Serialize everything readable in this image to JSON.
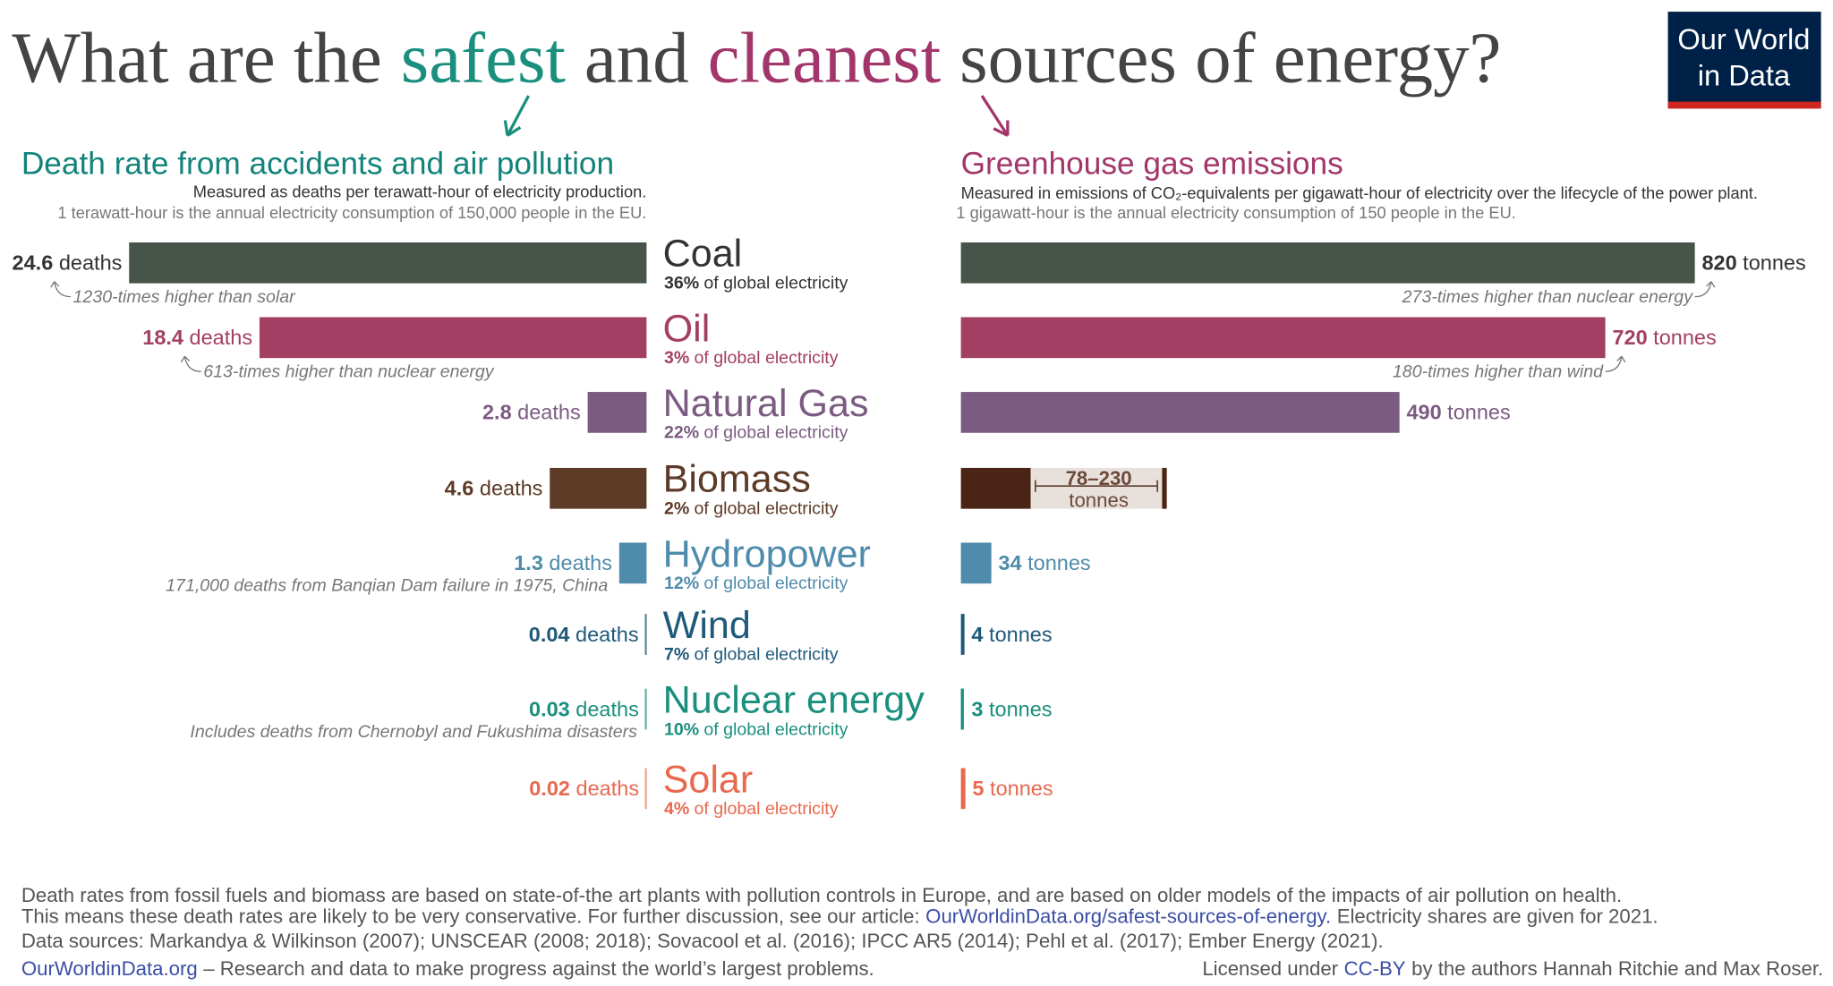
{
  "header": {
    "title_parts": [
      "What are the",
      "safest",
      "and",
      "cleanest",
      "sources of energy?"
    ],
    "logo": [
      "Our World",
      "in Data"
    ]
  },
  "chart_data": [
    {
      "type": "bar",
      "direction": "left",
      "title": "Death rate from accidents and air pollution",
      "subtitle": "Measured as deaths per terawatt-hour of electricity production.",
      "note": "1 terawatt-hour is the annual electricity consumption of 150,000 people in the EU.",
      "categories": [
        "Coal",
        "Oil",
        "Natural Gas",
        "Biomass",
        "Hydropower",
        "Wind",
        "Nuclear energy",
        "Solar"
      ],
      "colors": [
        "#47544a",
        "#a33f63",
        "#7c5b82",
        "#5d3a26",
        "#4f8bab",
        "#1f5a7a",
        "#1a8f7e",
        "#e8694f"
      ],
      "shares": [
        36,
        3,
        22,
        2,
        12,
        7,
        10,
        4
      ],
      "share_labels": [
        "36%",
        "3%",
        "22%",
        "2%",
        "12%",
        "7%",
        "10%",
        "4%"
      ],
      "share_suffix": "of global electricity",
      "values": [
        24.6,
        18.4,
        2.8,
        4.6,
        1.3,
        0.04,
        0.03,
        0.02
      ],
      "unit": "deaths",
      "notes": [
        "1230-times higher than solar",
        "613-times higher than nuclear energy",
        null,
        null,
        "171,000 deaths from Banqian Dam failure in 1975, China",
        null,
        "Includes deaths from Chernobyl and Fukushima disasters",
        null
      ],
      "xlim": [
        0,
        25
      ]
    },
    {
      "type": "bar",
      "direction": "right",
      "title": "Greenhouse gas emissions",
      "subtitle": "Measured in emissions of CO₂-equivalents per gigawatt-hour of electricity over the lifecycle of the power plant.",
      "note": "1 gigawatt-hour is the annual electricity consumption of 150 people in the EU.",
      "values": [
        820,
        720,
        490,
        78,
        34,
        4,
        3,
        5
      ],
      "upper": [
        null,
        null,
        null,
        230,
        null,
        null,
        null,
        null
      ],
      "value_labels": [
        null,
        null,
        null,
        "78–230",
        null,
        null,
        null,
        null
      ],
      "unit": "tonnes",
      "colors": [
        "#47544a",
        "#a33f63",
        "#7c5b82",
        "#4a2414",
        "#4f8bab",
        "#1f5a7a",
        "#1a8f7e",
        "#e8694f"
      ],
      "range_color": "#e8e0db",
      "notes": [
        "273-times higher than nuclear energy",
        "180-times higher than wind",
        null,
        null,
        null,
        null,
        null,
        null
      ],
      "xlim": [
        0,
        850
      ]
    }
  ],
  "footer": {
    "lines": [
      "Death rates from fossil fuels and biomass are based on state-of-the art plants with pollution controls in Europe, and are based on older models of the impacts of air pollution on health."
    ],
    "line2": [
      "This means these death rates are likely to be very conservative. For further discussion, see our article:",
      "OurWorldinData.org/safest-sources-of-energy.",
      "Electricity shares are given for 2021."
    ],
    "sources": "Data sources: Markandya & Wilkinson (2007); UNSCEAR (2008; 2018); Sovacool et al. (2016); IPCC AR5 (2014); Pehl et al. (2017); Ember Energy (2021).",
    "site": "OurWorldinData.org",
    "tagline": "– Research and data to make progress against the world’s largest problems.",
    "license": [
      "Licensed under",
      "CC-BY",
      "by the authors Hannah Ritchie and Max Roser."
    ]
  }
}
